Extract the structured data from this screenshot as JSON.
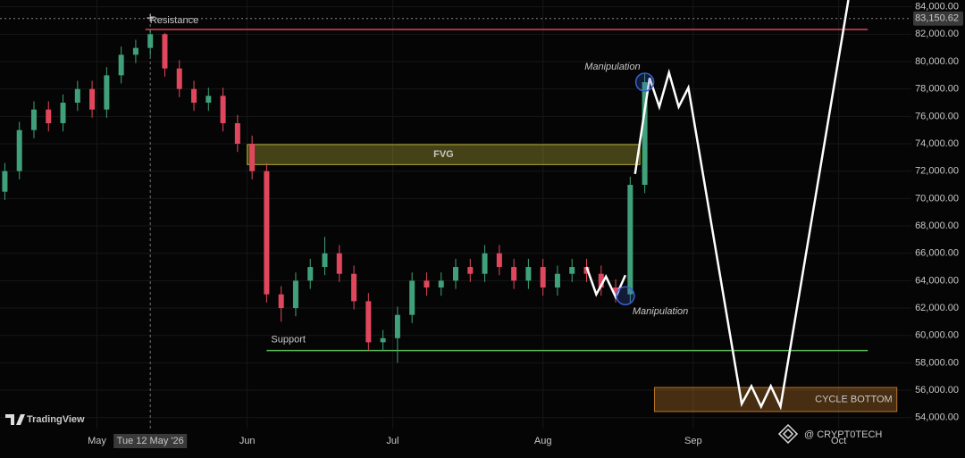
{
  "chart_data": {
    "type": "candlestick",
    "x": [
      -19,
      -16,
      -13,
      -10,
      -7,
      -4,
      -1,
      2,
      5,
      8,
      11,
      14,
      17,
      20,
      23,
      26,
      29,
      32,
      35,
      38,
      41,
      44,
      47,
      50,
      53,
      56,
      59,
      62,
      65,
      68,
      71,
      74,
      77,
      80,
      83,
      86,
      89,
      92,
      95,
      98,
      101,
      104,
      107,
      110,
      113
    ],
    "open": [
      70500,
      72000,
      75000,
      76500,
      75500,
      77000,
      78000,
      76500,
      79000,
      80500,
      81000,
      82000,
      79500,
      78000,
      77000,
      77500,
      75500,
      74000,
      72000,
      63000,
      62000,
      64000,
      65000,
      66000,
      64500,
      62500,
      59500,
      59800,
      61500,
      64000,
      63500,
      64000,
      65000,
      64500,
      66000,
      65000,
      64000,
      65000,
      63500,
      64500,
      65000,
      64500,
      63500,
      63000,
      71000
    ],
    "high": [
      72600,
      75600,
      77100,
      77100,
      77600,
      78600,
      78600,
      79600,
      81100,
      81600,
      82300,
      82100,
      80100,
      78600,
      78100,
      78100,
      76100,
      74600,
      72600,
      63600,
      64600,
      65600,
      67200,
      66600,
      65100,
      63100,
      60400,
      62100,
      64600,
      64600,
      64600,
      65600,
      65600,
      66600,
      66600,
      65600,
      65600,
      65600,
      65100,
      65600,
      65600,
      65100,
      64100,
      71600,
      79100
    ],
    "low": [
      69900,
      71400,
      74400,
      74900,
      74900,
      76400,
      75900,
      75900,
      78400,
      79900,
      80400,
      78900,
      77400,
      76400,
      76400,
      74900,
      73400,
      71400,
      62400,
      61000,
      61400,
      63400,
      64400,
      63900,
      61900,
      58900,
      58900,
      58000,
      60900,
      62900,
      62900,
      63400,
      63900,
      63900,
      64400,
      63400,
      63400,
      62900,
      62900,
      63900,
      63900,
      62900,
      62400,
      62400,
      70400
    ],
    "close": [
      72000,
      75000,
      76500,
      75500,
      77000,
      78000,
      76500,
      79000,
      80500,
      81000,
      82000,
      79500,
      78000,
      77000,
      77500,
      75500,
      74000,
      72000,
      63000,
      62000,
      64000,
      65000,
      66000,
      64500,
      62500,
      59500,
      59800,
      61500,
      64000,
      63500,
      64000,
      65000,
      64500,
      66000,
      65000,
      64000,
      65000,
      63500,
      64500,
      65000,
      64500,
      63500,
      63000,
      71000,
      78500
    ],
    "up_color": "#3fa07a",
    "down_color": "#e0475c",
    "xlim": [
      -20,
      168
    ],
    "xticks": [
      {
        "value": 0,
        "label": "May"
      },
      {
        "value": 31,
        "label": "Jun"
      },
      {
        "value": 61,
        "label": "Jul"
      },
      {
        "value": 92,
        "label": "Aug"
      },
      {
        "value": 123,
        "label": "Sep"
      },
      {
        "value": 153,
        "label": "Oct"
      }
    ],
    "ylim": [
      53200,
      84500
    ],
    "yticks": [
      {
        "value": 54000,
        "label": "54,000.00"
      },
      {
        "value": 56000,
        "label": "56,000.00"
      },
      {
        "value": 58000,
        "label": "58,000.00"
      },
      {
        "value": 60000,
        "label": "60,000.00"
      },
      {
        "value": 62000,
        "label": "62,000.00"
      },
      {
        "value": 64000,
        "label": "64,000.00"
      },
      {
        "value": 66000,
        "label": "66,000.00"
      },
      {
        "value": 68000,
        "label": "68,000.00"
      },
      {
        "value": 70000,
        "label": "70,000.00"
      },
      {
        "value": 72000,
        "label": "72,000.00"
      },
      {
        "value": 74000,
        "label": "74,000.00"
      },
      {
        "value": 76000,
        "label": "76,000.00"
      },
      {
        "value": 78000,
        "label": "78,000.00"
      },
      {
        "value": 80000,
        "label": "80,000.00"
      },
      {
        "value": 82000,
        "label": "82,000.00"
      },
      {
        "value": 84000,
        "label": "84,000.00"
      }
    ],
    "grid": true,
    "last_price": {
      "value": 83150.62,
      "label": "83,150.62"
    },
    "crosshair": {
      "x": 11,
      "label": "Tue 12 May '26"
    },
    "levels": [
      {
        "label": "Resistance",
        "value": 82350,
        "x_range": [
          10,
          159
        ],
        "color": "#e0405a"
      },
      {
        "label": "Support",
        "value": 58900,
        "x_range": [
          35,
          159
        ],
        "color": "#5cb85c"
      }
    ],
    "zones": [
      {
        "label": "FVG",
        "x_range": [
          31,
          112
        ],
        "y_range": [
          72480,
          73940
        ],
        "color": "#d8d040"
      },
      {
        "label": "CYCLE BOTTOM",
        "x_range": [
          115,
          165
        ],
        "y_range": [
          54440,
          56200
        ],
        "color": "#e08a30"
      }
    ],
    "markers": [
      {
        "label": "Manipulation",
        "x": 113,
        "y": 78500,
        "color": "#3a5fd0"
      },
      {
        "label": "Manipulation",
        "x": 109,
        "y": 62900,
        "color": "#3a5fd0"
      }
    ],
    "projection": {
      "color": "#ffffff",
      "x": [
        101,
        103,
        105,
        107,
        109,
        null,
        111,
        114,
        116,
        118,
        120,
        122,
        133,
        135,
        137,
        139,
        141,
        155
      ],
      "y": [
        65000,
        63000,
        64300,
        62800,
        64400,
        null,
        71800,
        78800,
        76700,
        79200,
        76700,
        78100,
        55000,
        56300,
        54800,
        56300,
        54800,
        84500
      ]
    },
    "watermarks": [
      "TradingView",
      "@ CRYPT0TECH"
    ]
  }
}
